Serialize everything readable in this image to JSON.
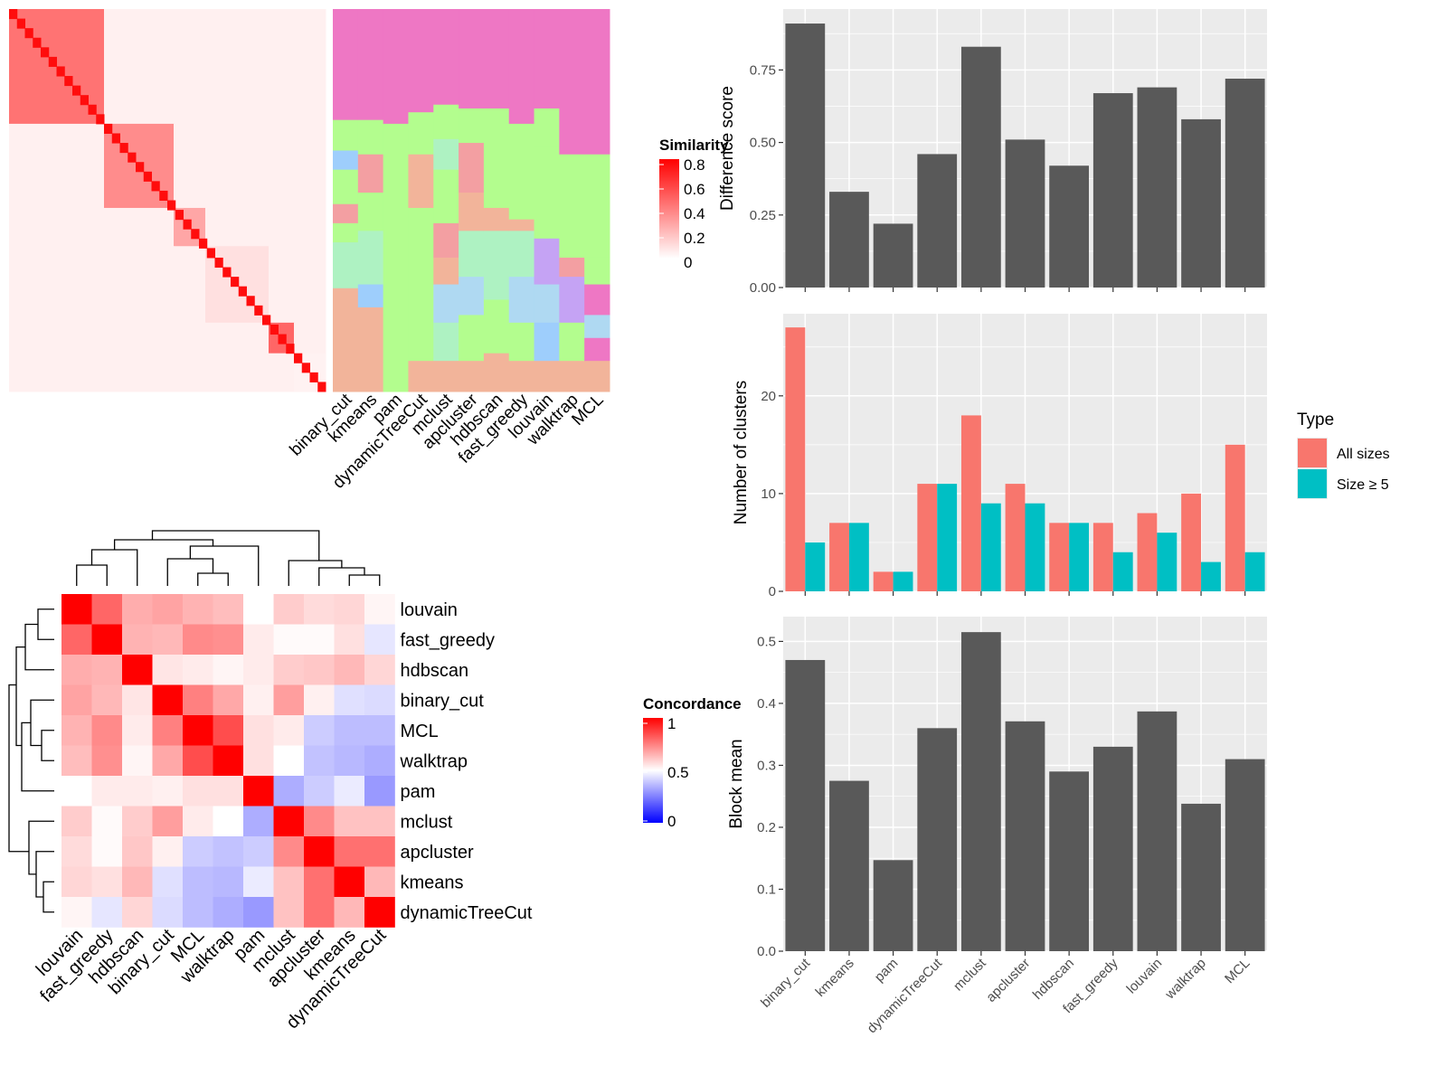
{
  "colors": {
    "similarity_low": "#ffffff",
    "similarity_high": "#ff0000",
    "concord_low": "#0000ff",
    "concord_mid": "#ffffff",
    "concord_high": "#ff0000",
    "bar_fill": "#595959",
    "panel_bg": "#ebebeb",
    "grid": "#ffffff",
    "type_all": "#f8766d",
    "type_size5": "#00bfc4"
  },
  "chart_data": [
    {
      "type": "heatmap",
      "panel": "cell-similarity",
      "legend_title": "Similarity",
      "legend_ticks": [
        "0.8",
        "0.6",
        "0.4",
        "0.2",
        "0"
      ],
      "annotation_columns": [
        "binary_cut",
        "kmeans",
        "pam",
        "dynamicTreeCut",
        "mclust",
        "apcluster",
        "hdbscan",
        "fast_greedy",
        "louvain",
        "walktrap",
        "MCL"
      ],
      "blocks": [
        {
          "size": 0.3,
          "value": 0.55
        },
        {
          "size": 0.22,
          "value": 0.45
        },
        {
          "size": 0.1,
          "value": 0.35
        },
        {
          "size": 0.2,
          "value": 0.12
        },
        {
          "size": 0.08,
          "value": 0.6
        },
        {
          "size": 0.1,
          "value": 0.05
        }
      ]
    },
    {
      "type": "heatmap",
      "panel": "concordance",
      "legend_title": "Concordance",
      "legend_ticks": [
        "1",
        "0.5",
        "0"
      ],
      "rows": [
        "louvain",
        "fast_greedy",
        "hdbscan",
        "binary_cut",
        "MCL",
        "walktrap",
        "pam",
        "mclust",
        "apcluster",
        "kmeans",
        "dynamicTreeCut"
      ],
      "columns": [
        "louvain",
        "fast_greedy",
        "hdbscan",
        "binary_cut",
        "MCL",
        "walktrap",
        "pam",
        "mclust",
        "apcluster",
        "kmeans",
        "dynamicTreeCut"
      ],
      "values": [
        [
          1.0,
          0.8,
          0.66,
          0.68,
          0.65,
          0.63,
          0.5,
          0.6,
          0.57,
          0.58,
          0.52
        ],
        [
          0.8,
          1.0,
          0.65,
          0.64,
          0.73,
          0.72,
          0.54,
          0.51,
          0.51,
          0.56,
          0.45
        ],
        [
          0.66,
          0.65,
          1.0,
          0.55,
          0.54,
          0.52,
          0.54,
          0.6,
          0.61,
          0.64,
          0.58
        ],
        [
          0.68,
          0.64,
          0.55,
          1.0,
          0.75,
          0.67,
          0.53,
          0.69,
          0.53,
          0.44,
          0.43
        ],
        [
          0.65,
          0.73,
          0.54,
          0.75,
          1.0,
          0.85,
          0.56,
          0.54,
          0.4,
          0.37,
          0.37
        ],
        [
          0.63,
          0.72,
          0.52,
          0.67,
          0.85,
          1.0,
          0.56,
          0.5,
          0.38,
          0.36,
          0.34
        ],
        [
          0.5,
          0.54,
          0.54,
          0.53,
          0.56,
          0.56,
          1.0,
          0.34,
          0.4,
          0.46,
          0.3
        ],
        [
          0.6,
          0.51,
          0.6,
          0.69,
          0.54,
          0.5,
          0.34,
          1.0,
          0.73,
          0.62,
          0.62
        ],
        [
          0.57,
          0.51,
          0.61,
          0.53,
          0.4,
          0.38,
          0.4,
          0.73,
          1.0,
          0.78,
          0.78
        ],
        [
          0.58,
          0.56,
          0.64,
          0.44,
          0.37,
          0.36,
          0.46,
          0.62,
          0.78,
          1.0,
          0.64
        ],
        [
          0.52,
          0.45,
          0.58,
          0.43,
          0.37,
          0.34,
          0.3,
          0.62,
          0.78,
          0.64,
          1.0
        ]
      ]
    },
    {
      "type": "bar",
      "panel": "difference",
      "categories": [
        "binary_cut",
        "kmeans",
        "pam",
        "dynamicTreeCut",
        "mclust",
        "apcluster",
        "hdbscan",
        "fast_greedy",
        "louvain",
        "walktrap",
        "MCL"
      ],
      "values": [
        0.91,
        0.33,
        0.22,
        0.46,
        0.83,
        0.51,
        0.42,
        0.67,
        0.69,
        0.58,
        0.72
      ],
      "ylabel": "Difference score",
      "ylim": [
        0,
        0.96
      ],
      "yticks": [
        "0.00",
        "0.25",
        "0.50",
        "0.75"
      ]
    },
    {
      "type": "bar",
      "panel": "clusters",
      "categories": [
        "binary_cut",
        "kmeans",
        "pam",
        "dynamicTreeCut",
        "mclust",
        "apcluster",
        "hdbscan",
        "fast_greedy",
        "louvain",
        "walktrap",
        "MCL"
      ],
      "series": [
        {
          "name": "All sizes",
          "values": [
            27,
            7,
            2,
            11,
            18,
            11,
            7,
            7,
            8,
            10,
            15
          ]
        },
        {
          "name": "Size ≥ 5",
          "values": [
            5,
            7,
            2,
            11,
            9,
            9,
            7,
            4,
            6,
            3,
            4
          ]
        }
      ],
      "ylabel": "Number of clusters",
      "ylim": [
        0,
        28.4
      ],
      "yticks": [
        "0",
        "10",
        "20"
      ],
      "legend_title": "Type",
      "legend_position": "right"
    },
    {
      "type": "bar",
      "panel": "block-mean",
      "categories": [
        "binary_cut",
        "kmeans",
        "pam",
        "dynamicTreeCut",
        "mclust",
        "apcluster",
        "hdbscan",
        "fast_greedy",
        "louvain",
        "walktrap",
        "MCL"
      ],
      "values": [
        0.47,
        0.275,
        0.147,
        0.36,
        0.515,
        0.371,
        0.29,
        0.33,
        0.387,
        0.238,
        0.31
      ],
      "ylabel": "Block mean",
      "ylim": [
        0,
        0.54
      ],
      "yticks": [
        "0.0",
        "0.1",
        "0.2",
        "0.3",
        "0.4",
        "0.5"
      ]
    }
  ]
}
